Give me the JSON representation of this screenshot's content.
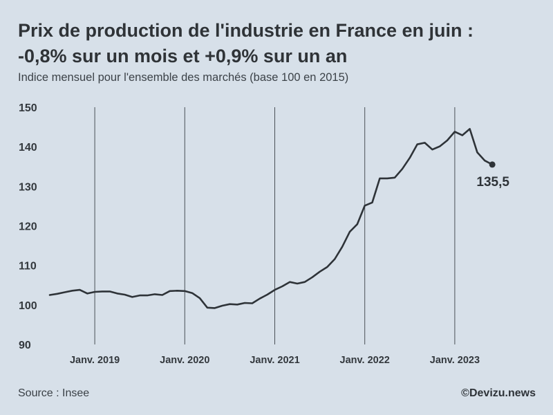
{
  "header": {
    "title_line1": "Prix de production de l'industrie en France en juin :",
    "title_line2": "-0,8% sur un mois et +0,9% sur un an",
    "subtitle": "Indice mensuel pour l'ensemble des marchés (base 100 en 2015)"
  },
  "footer": {
    "source": "Source : Insee",
    "credit": "©Devizu.news"
  },
  "colors": {
    "background": "#d7e0e9",
    "line": "#2e3338",
    "grid": "#4a5056"
  },
  "chart_data": {
    "type": "line",
    "title": "Prix de production de l'industrie en France en juin : -0,8% sur un mois et +0,9% sur un an",
    "subtitle": "Indice mensuel pour l'ensemble des marchés (base 100 en 2015)",
    "xlabel": "",
    "ylabel": "",
    "ylim": [
      90,
      150
    ],
    "yticks": [
      "90",
      "100",
      "110",
      "120",
      "130",
      "140",
      "150"
    ],
    "xtick_labels": [
      "Janv. 2019",
      "Janv. 2020",
      "Janv. 2021",
      "Janv. 2022",
      "Janv. 2023"
    ],
    "grid": "vertical lines at each January",
    "start": "2018-07",
    "end": "2023-06",
    "last_value_label": "135,5",
    "series": [
      {
        "name": "Indice des prix de production de l'industrie",
        "values": [
          102.5,
          102.8,
          103.2,
          103.6,
          103.8,
          102.9,
          103.3,
          103.4,
          103.4,
          102.9,
          102.6,
          102.0,
          102.4,
          102.4,
          102.7,
          102.5,
          103.5,
          103.6,
          103.5,
          103.0,
          101.7,
          99.3,
          99.2,
          99.8,
          100.2,
          100.1,
          100.5,
          100.4,
          101.6,
          102.6,
          103.8,
          104.7,
          105.8,
          105.4,
          105.8,
          107.0,
          108.4,
          109.6,
          111.6,
          114.7,
          118.5,
          120.4,
          125.1,
          125.9,
          132.0,
          132.0,
          132.2,
          134.4,
          137.2,
          140.6,
          141.0,
          139.3,
          140.1,
          141.6,
          143.8,
          142.9,
          144.5,
          138.6,
          136.5,
          135.5
        ]
      }
    ]
  }
}
